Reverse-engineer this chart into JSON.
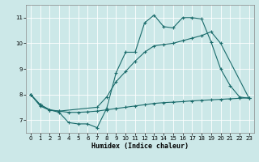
{
  "xlabel": "Humidex (Indice chaleur)",
  "background_color": "#cce8e8",
  "line_color": "#1a6b6b",
  "grid_color": "#ffffff",
  "xlim": [
    -0.5,
    23.5
  ],
  "ylim": [
    6.5,
    11.5
  ],
  "yticks": [
    7,
    8,
    9,
    10,
    11
  ],
  "xticks": [
    0,
    1,
    2,
    3,
    4,
    5,
    6,
    7,
    8,
    9,
    10,
    11,
    12,
    13,
    14,
    15,
    16,
    17,
    18,
    19,
    20,
    21,
    22,
    23
  ],
  "line1_x": [
    0,
    1,
    2,
    3,
    4,
    5,
    6,
    7,
    8,
    9,
    10,
    11,
    12,
    13,
    14,
    15,
    16,
    17,
    18,
    19,
    20,
    21,
    22,
    23
  ],
  "line1_y": [
    8.0,
    7.6,
    7.4,
    7.3,
    6.9,
    6.85,
    6.85,
    6.7,
    7.45,
    8.85,
    9.65,
    9.65,
    10.8,
    11.1,
    10.65,
    10.6,
    11.0,
    11.0,
    10.95,
    10.05,
    9.0,
    8.35,
    7.9,
    7.85
  ],
  "line2_x": [
    0,
    1,
    2,
    3,
    7,
    8,
    9,
    10,
    11,
    12,
    13,
    14,
    15,
    16,
    17,
    18,
    19,
    20,
    23
  ],
  "line2_y": [
    8.0,
    7.6,
    7.4,
    7.35,
    7.5,
    7.9,
    8.5,
    8.9,
    9.3,
    9.65,
    9.9,
    9.95,
    10.0,
    10.1,
    10.2,
    10.3,
    10.45,
    10.0,
    7.85
  ],
  "line3_x": [
    0,
    1,
    2,
    3,
    4,
    5,
    6,
    7,
    8,
    9,
    10,
    11,
    12,
    13,
    14,
    15,
    16,
    17,
    18,
    19,
    20,
    21,
    22,
    23
  ],
  "line3_y": [
    8.0,
    7.55,
    7.38,
    7.35,
    7.3,
    7.3,
    7.32,
    7.35,
    7.4,
    7.45,
    7.5,
    7.55,
    7.6,
    7.65,
    7.68,
    7.7,
    7.72,
    7.75,
    7.77,
    7.79,
    7.81,
    7.83,
    7.85,
    7.87
  ]
}
